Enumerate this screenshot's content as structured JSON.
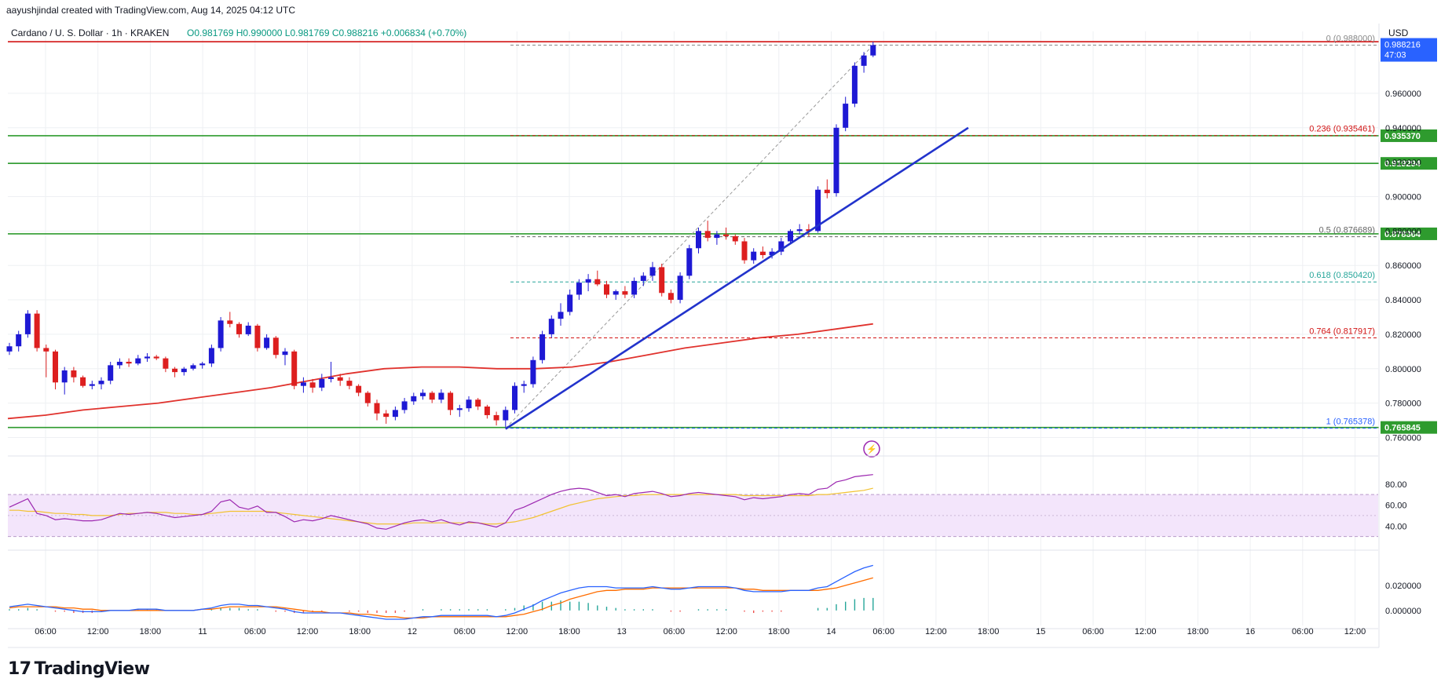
{
  "header": {
    "attribution": "aayushjindal created with TradingView.com, Aug 14, 2025 04:12 UTC"
  },
  "brand": {
    "logo_text": "TradingView"
  },
  "colors": {
    "up": "#1e19d4",
    "down": "#dd1f1f",
    "support": "#2e9b2e",
    "top_line": "#d21414",
    "ma": "#e0322d",
    "trend": "#2233cc",
    "fib_0": "#888888",
    "fib_236": "#d21414",
    "fib_05": "#666666",
    "fib_618": "#26a69a",
    "fib_764": "#d21414",
    "fib_1": "#2962ff",
    "rsi": "#9c27b0",
    "rsi_ma": "#f2c232",
    "macd": "#2962ff",
    "signal": "#ff6d00",
    "hist": "#26a69a"
  },
  "chart_data": {
    "type": "candlestick",
    "symbol_line": "Cardano / U. S. Dollar · 1h · KRAKEN",
    "ohlc_label": "O0.981769 H0.990000 L0.981769 C0.988216 +0.006834 (+0.70%)",
    "currency": "USD",
    "ylim": [
      0.752,
      0.996
    ],
    "y_ticks": [
      "0.760000",
      "0.780000",
      "0.800000",
      "0.820000",
      "0.840000",
      "0.860000",
      "0.880000",
      "0.900000",
      "0.920000",
      "0.940000",
      "0.960000"
    ],
    "x_ticks": [
      "06:00",
      "12:00",
      "18:00",
      "11",
      "06:00",
      "12:00",
      "18:00",
      "12",
      "06:00",
      "12:00",
      "18:00",
      "13",
      "06:00",
      "12:00",
      "18:00",
      "14",
      "06:00",
      "12:00",
      "18:00",
      "15",
      "06:00",
      "12:00",
      "18:00",
      "16",
      "06:00",
      "12:00"
    ],
    "price_badge": {
      "value": "0.988216",
      "countdown": "47:03"
    },
    "horizontal_levels": [
      {
        "value": 0.93537,
        "label": "0.935370"
      },
      {
        "value": 0.919294,
        "label": "0.919294"
      },
      {
        "value": 0.878364,
        "label": "0.878364"
      },
      {
        "value": 0.765845,
        "label": "0.765845"
      }
    ],
    "top_line": 0.99,
    "fibonacci": [
      {
        "label": "0 (0.988000)",
        "value": 0.988
      },
      {
        "label": "0.236 (0.935461)",
        "value": 0.935461
      },
      {
        "label": "0.5 (0.876689)",
        "value": 0.876689
      },
      {
        "label": "0.618 (0.850420)",
        "value": 0.85042
      },
      {
        "label": "0.764 (0.817917)",
        "value": 0.817917
      },
      {
        "label": "1 (0.765378)",
        "value": 0.765378
      }
    ],
    "candles": [
      [
        0.81,
        0.815,
        0.808,
        0.813
      ],
      [
        0.813,
        0.822,
        0.81,
        0.82
      ],
      [
        0.82,
        0.834,
        0.818,
        0.832
      ],
      [
        0.832,
        0.834,
        0.81,
        0.812
      ],
      [
        0.812,
        0.814,
        0.795,
        0.81
      ],
      [
        0.81,
        0.811,
        0.788,
        0.792
      ],
      [
        0.792,
        0.801,
        0.785,
        0.799
      ],
      [
        0.799,
        0.801,
        0.792,
        0.795
      ],
      [
        0.795,
        0.796,
        0.789,
        0.79
      ],
      [
        0.79,
        0.793,
        0.788,
        0.791
      ],
      [
        0.791,
        0.795,
        0.788,
        0.793
      ],
      [
        0.793,
        0.804,
        0.791,
        0.802
      ],
      [
        0.802,
        0.806,
        0.8,
        0.804
      ],
      [
        0.804,
        0.806,
        0.801,
        0.803
      ],
      [
        0.803,
        0.808,
        0.802,
        0.806
      ],
      [
        0.806,
        0.809,
        0.804,
        0.807
      ],
      [
        0.807,
        0.808,
        0.805,
        0.806
      ],
      [
        0.806,
        0.807,
        0.798,
        0.8
      ],
      [
        0.8,
        0.801,
        0.795,
        0.798
      ],
      [
        0.798,
        0.801,
        0.796,
        0.8
      ],
      [
        0.8,
        0.803,
        0.799,
        0.802
      ],
      [
        0.802,
        0.804,
        0.8,
        0.803
      ],
      [
        0.803,
        0.814,
        0.801,
        0.812
      ],
      [
        0.812,
        0.83,
        0.81,
        0.828
      ],
      [
        0.828,
        0.833,
        0.824,
        0.826
      ],
      [
        0.826,
        0.827,
        0.818,
        0.82
      ],
      [
        0.82,
        0.827,
        0.819,
        0.825
      ],
      [
        0.825,
        0.826,
        0.81,
        0.812
      ],
      [
        0.812,
        0.82,
        0.811,
        0.818
      ],
      [
        0.818,
        0.819,
        0.806,
        0.808
      ],
      [
        0.808,
        0.812,
        0.802,
        0.81
      ],
      [
        0.81,
        0.811,
        0.788,
        0.79
      ],
      [
        0.79,
        0.795,
        0.786,
        0.792
      ],
      [
        0.792,
        0.794,
        0.786,
        0.789
      ],
      [
        0.789,
        0.797,
        0.787,
        0.794
      ],
      [
        0.794,
        0.804,
        0.792,
        0.795
      ],
      [
        0.795,
        0.797,
        0.79,
        0.793
      ],
      [
        0.793,
        0.795,
        0.788,
        0.79
      ],
      [
        0.79,
        0.791,
        0.784,
        0.786
      ],
      [
        0.786,
        0.787,
        0.778,
        0.78
      ],
      [
        0.78,
        0.782,
        0.77,
        0.774
      ],
      [
        0.774,
        0.776,
        0.768,
        0.772
      ],
      [
        0.772,
        0.778,
        0.77,
        0.776
      ],
      [
        0.776,
        0.783,
        0.774,
        0.781
      ],
      [
        0.781,
        0.786,
        0.779,
        0.784
      ],
      [
        0.784,
        0.788,
        0.782,
        0.786
      ],
      [
        0.786,
        0.787,
        0.78,
        0.782
      ],
      [
        0.782,
        0.788,
        0.78,
        0.786
      ],
      [
        0.786,
        0.787,
        0.773,
        0.776
      ],
      [
        0.776,
        0.779,
        0.772,
        0.777
      ],
      [
        0.777,
        0.784,
        0.775,
        0.782
      ],
      [
        0.782,
        0.783,
        0.776,
        0.778
      ],
      [
        0.778,
        0.779,
        0.771,
        0.773
      ],
      [
        0.773,
        0.775,
        0.767,
        0.77
      ],
      [
        0.77,
        0.778,
        0.766,
        0.776
      ],
      [
        0.776,
        0.792,
        0.774,
        0.79
      ],
      [
        0.79,
        0.793,
        0.786,
        0.791
      ],
      [
        0.791,
        0.807,
        0.789,
        0.805
      ],
      [
        0.805,
        0.822,
        0.803,
        0.82
      ],
      [
        0.82,
        0.831,
        0.818,
        0.829
      ],
      [
        0.829,
        0.838,
        0.825,
        0.833
      ],
      [
        0.833,
        0.846,
        0.831,
        0.843
      ],
      [
        0.843,
        0.852,
        0.84,
        0.85
      ],
      [
        0.85,
        0.855,
        0.845,
        0.852
      ],
      [
        0.852,
        0.857,
        0.848,
        0.849
      ],
      [
        0.849,
        0.851,
        0.841,
        0.843
      ],
      [
        0.843,
        0.846,
        0.84,
        0.845
      ],
      [
        0.845,
        0.848,
        0.841,
        0.843
      ],
      [
        0.843,
        0.853,
        0.841,
        0.851
      ],
      [
        0.851,
        0.856,
        0.848,
        0.854
      ],
      [
        0.854,
        0.862,
        0.851,
        0.859
      ],
      [
        0.859,
        0.861,
        0.842,
        0.844
      ],
      [
        0.844,
        0.846,
        0.838,
        0.84
      ],
      [
        0.84,
        0.856,
        0.838,
        0.854
      ],
      [
        0.854,
        0.872,
        0.852,
        0.87
      ],
      [
        0.87,
        0.882,
        0.867,
        0.88
      ],
      [
        0.88,
        0.886,
        0.874,
        0.876
      ],
      [
        0.876,
        0.88,
        0.872,
        0.878
      ],
      [
        0.878,
        0.882,
        0.875,
        0.877
      ],
      [
        0.877,
        0.878,
        0.872,
        0.874
      ],
      [
        0.874,
        0.876,
        0.861,
        0.863
      ],
      [
        0.863,
        0.87,
        0.861,
        0.868
      ],
      [
        0.868,
        0.871,
        0.864,
        0.866
      ],
      [
        0.866,
        0.87,
        0.864,
        0.868
      ],
      [
        0.868,
        0.876,
        0.866,
        0.874
      ],
      [
        0.874,
        0.881,
        0.873,
        0.88
      ],
      [
        0.88,
        0.884,
        0.878,
        0.881
      ],
      [
        0.881,
        0.884,
        0.877,
        0.88
      ],
      [
        0.88,
        0.906,
        0.879,
        0.904
      ],
      [
        0.904,
        0.91,
        0.899,
        0.902
      ],
      [
        0.902,
        0.942,
        0.9,
        0.94
      ],
      [
        0.94,
        0.958,
        0.938,
        0.954
      ],
      [
        0.954,
        0.978,
        0.952,
        0.976
      ],
      [
        0.976,
        0.984,
        0.972,
        0.982
      ],
      [
        0.982,
        0.99,
        0.981,
        0.988
      ]
    ],
    "ma_line": [
      0.771,
      0.773,
      0.776,
      0.778,
      0.78,
      0.783,
      0.786,
      0.789,
      0.793,
      0.797,
      0.8,
      0.801,
      0.801,
      0.8,
      0.8,
      0.801,
      0.804,
      0.808,
      0.812,
      0.815,
      0.818,
      0.82,
      0.823,
      0.826
    ],
    "rsi": {
      "y_ticks": [
        "40.00",
        "60.00",
        "80.00"
      ],
      "band": [
        30,
        70
      ],
      "ylim": [
        20,
        100
      ],
      "values": [
        58,
        62,
        66,
        52,
        50,
        46,
        47,
        46,
        45,
        45,
        46,
        49,
        52,
        51,
        52,
        53,
        52,
        50,
        48,
        49,
        50,
        51,
        54,
        63,
        65,
        58,
        56,
        59,
        53,
        53,
        49,
        44,
        46,
        45,
        47,
        50,
        48,
        46,
        44,
        42,
        38,
        37,
        40,
        43,
        45,
        46,
        44,
        46,
        43,
        41,
        44,
        43,
        41,
        39,
        43,
        55,
        58,
        62,
        66,
        70,
        73,
        75,
        76,
        75,
        72,
        69,
        70,
        68,
        71,
        72,
        73,
        71,
        68,
        69,
        71,
        72,
        71,
        70,
        69,
        68,
        65,
        67,
        66,
        67,
        68,
        70,
        71,
        70,
        75,
        76,
        82,
        84,
        87,
        88,
        89
      ],
      "ma_values": [
        55,
        55,
        54,
        54,
        53,
        52,
        52,
        51,
        51,
        50,
        50,
        50,
        51,
        52,
        52,
        53,
        53,
        53,
        52,
        52,
        51,
        51,
        52,
        53,
        54,
        54,
        54,
        54,
        54,
        53,
        52,
        51,
        50,
        49,
        48,
        47,
        46,
        45,
        44,
        43,
        42,
        42,
        42,
        42,
        43,
        43,
        43,
        43,
        43,
        43,
        43,
        43,
        42,
        42,
        43,
        44,
        46,
        48,
        51,
        54,
        57,
        60,
        62,
        64,
        66,
        67,
        68,
        69,
        69,
        70,
        70,
        70,
        70,
        70,
        70,
        70,
        70,
        70,
        70,
        70,
        69,
        69,
        69,
        69,
        69,
        69,
        69,
        69,
        70,
        70,
        71,
        72,
        73,
        74,
        76
      ]
    },
    "macd": {
      "y_ticks": [
        "0.000000",
        "0.020000"
      ],
      "ylim": [
        -0.012,
        0.045
      ],
      "macd": [
        0.003,
        0.004,
        0.005,
        0.004,
        0.003,
        0.002,
        0.001,
        0.0,
        -0.001,
        -0.001,
        -0.001,
        0.0,
        0.0,
        0.0,
        0.001,
        0.001,
        0.001,
        0.0,
        0.0,
        0.0,
        0.0,
        0.001,
        0.002,
        0.004,
        0.005,
        0.005,
        0.004,
        0.004,
        0.003,
        0.002,
        0.001,
        -0.001,
        -0.002,
        -0.002,
        -0.002,
        -0.002,
        -0.002,
        -0.003,
        -0.004,
        -0.005,
        -0.006,
        -0.007,
        -0.007,
        -0.007,
        -0.006,
        -0.005,
        -0.005,
        -0.004,
        -0.004,
        -0.004,
        -0.004,
        -0.004,
        -0.004,
        -0.005,
        -0.004,
        -0.002,
        0.001,
        0.004,
        0.008,
        0.011,
        0.014,
        0.016,
        0.018,
        0.019,
        0.019,
        0.019,
        0.018,
        0.018,
        0.018,
        0.018,
        0.019,
        0.018,
        0.017,
        0.017,
        0.018,
        0.019,
        0.019,
        0.019,
        0.019,
        0.018,
        0.016,
        0.015,
        0.015,
        0.015,
        0.015,
        0.016,
        0.016,
        0.016,
        0.018,
        0.019,
        0.023,
        0.027,
        0.031,
        0.034,
        0.036
      ],
      "signal": [
        0.002,
        0.003,
        0.003,
        0.003,
        0.003,
        0.003,
        0.002,
        0.002,
        0.001,
        0.001,
        0.0,
        0.0,
        0.0,
        0.0,
        0.0,
        0.0,
        0.0,
        0.0,
        0.0,
        0.0,
        0.0,
        0.001,
        0.001,
        0.002,
        0.003,
        0.003,
        0.003,
        0.003,
        0.003,
        0.003,
        0.002,
        0.001,
        0.0,
        -0.001,
        -0.001,
        -0.002,
        -0.002,
        -0.002,
        -0.003,
        -0.003,
        -0.004,
        -0.005,
        -0.005,
        -0.006,
        -0.006,
        -0.006,
        -0.005,
        -0.005,
        -0.005,
        -0.005,
        -0.005,
        -0.005,
        -0.005,
        -0.005,
        -0.005,
        -0.004,
        -0.003,
        -0.001,
        0.001,
        0.004,
        0.006,
        0.009,
        0.011,
        0.013,
        0.015,
        0.016,
        0.016,
        0.017,
        0.017,
        0.017,
        0.018,
        0.018,
        0.018,
        0.018,
        0.018,
        0.018,
        0.018,
        0.018,
        0.018,
        0.018,
        0.017,
        0.017,
        0.016,
        0.016,
        0.016,
        0.016,
        0.016,
        0.016,
        0.016,
        0.017,
        0.018,
        0.02,
        0.022,
        0.024,
        0.026
      ]
    }
  }
}
